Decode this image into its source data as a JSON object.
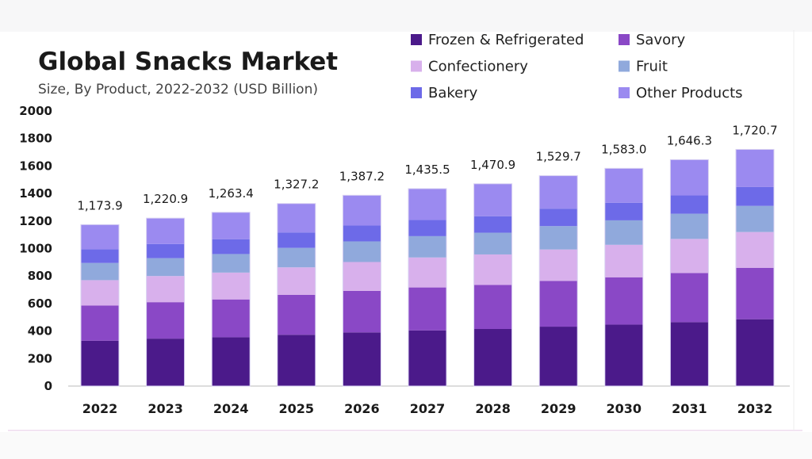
{
  "chart_data": {
    "type": "bar",
    "stacked": true,
    "title": "Global Snacks Market",
    "subtitle": "Size, By Product, 2022-2032 (USD Billion)",
    "categories": [
      "2022",
      "2023",
      "2024",
      "2025",
      "2026",
      "2027",
      "2028",
      "2029",
      "2030",
      "2031",
      "2032"
    ],
    "totals": [
      "1,173.9",
      "1,220.9",
      "1,263.4",
      "1,327.2",
      "1,387.2",
      "1,435.5",
      "1,470.9",
      "1,529.7",
      "1,583.0",
      "1,646.3",
      "1,720.7"
    ],
    "yticks": [
      "0",
      "200",
      "400",
      "600",
      "800",
      "1000",
      "1200",
      "1400",
      "1600",
      "1800",
      "2000"
    ],
    "ylim": [
      0,
      2000
    ],
    "legend_position": "top-right",
    "series": [
      {
        "name": "Frozen & Refrigerated",
        "color": "#4b1a8a",
        "values": [
          330,
          345,
          355,
          373,
          390,
          405,
          415,
          432,
          447,
          465,
          486
        ]
      },
      {
        "name": "Savory",
        "color": "#8a48c6",
        "values": [
          255,
          265,
          275,
          290,
          302,
          312,
          320,
          333,
          344,
          357,
          374
        ]
      },
      {
        "name": "Confectionery",
        "color": "#d8b0ec",
        "values": [
          185,
          190,
          195,
          200,
          210,
          218,
          222,
          228,
          236,
          248,
          260
        ]
      },
      {
        "name": "Fruit",
        "color": "#90a9dc",
        "values": [
          125,
          130,
          135,
          142,
          150,
          155,
          158,
          170,
          178,
          183,
          190
        ]
      },
      {
        "name": "Bakery",
        "color": "#6d6ae8",
        "values": [
          100,
          103,
          108,
          112,
          115,
          118,
          120,
          127,
          128,
          133,
          137
        ]
      },
      {
        "name": "Other Products",
        "color": "#9b8af0",
        "values": [
          178.9,
          187.9,
          195.4,
          210.2,
          220.2,
          227.5,
          235.9,
          239.7,
          250.0,
          260.3,
          273.7
        ]
      }
    ]
  }
}
